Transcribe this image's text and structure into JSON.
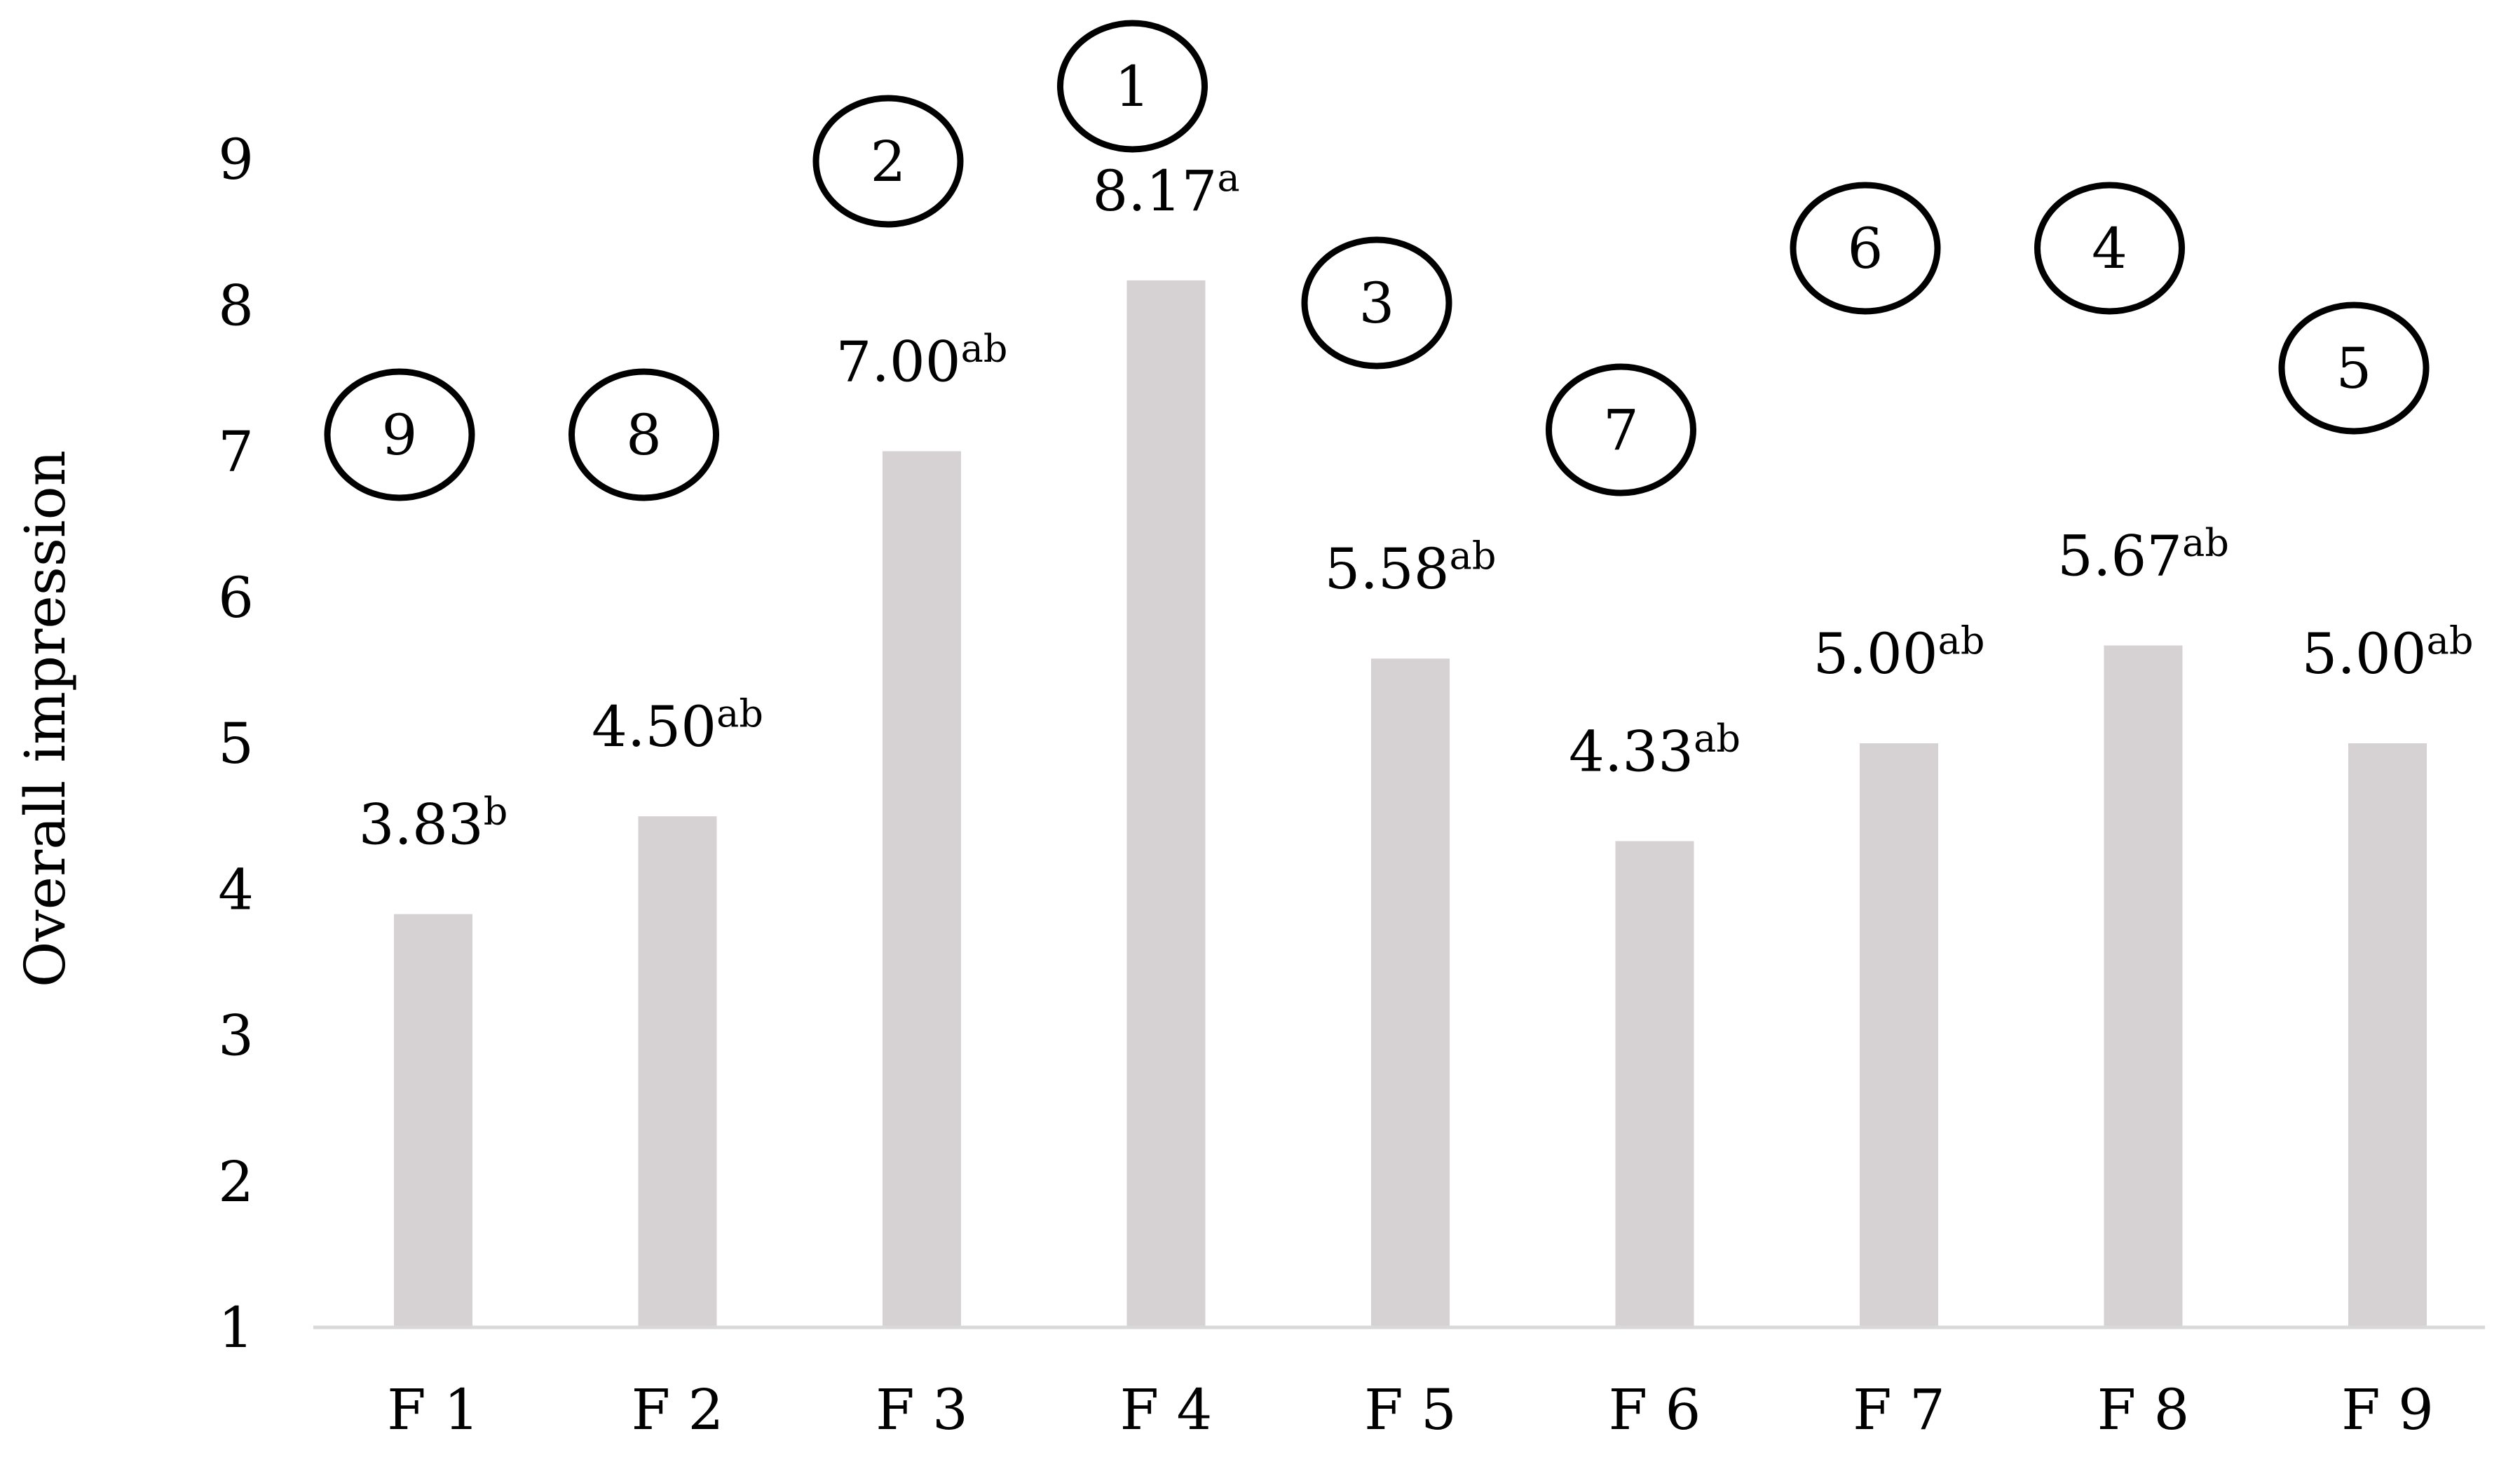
{
  "chart_data": {
    "type": "bar",
    "title": "",
    "xlabel": "",
    "ylabel": "Overall impression",
    "ylim": [
      1,
      9
    ],
    "yticks": [
      "1",
      "2",
      "3",
      "4",
      "5",
      "6",
      "7",
      "8",
      "9"
    ],
    "grid": false,
    "legend": "none",
    "bar_color": "#d6d2d4",
    "categories": [
      "F 1",
      "F 2",
      "F 3",
      "F 4",
      "F 5",
      "F 6",
      "F 7",
      "F 8",
      "F 9"
    ],
    "values": [
      3.83,
      4.5,
      7.0,
      8.17,
      5.58,
      4.33,
      5.0,
      5.67,
      5.0
    ],
    "value_labels": [
      "3.83",
      "4.50",
      "7.00",
      "8.17",
      "5.58",
      "4.33",
      "5.00",
      "5.67",
      "5.00"
    ],
    "significance_letters": [
      "b",
      "ab",
      "ab",
      "a",
      "ab",
      "ab",
      "ab",
      "ab",
      "ab"
    ],
    "ranks": [
      "9",
      "8",
      "2",
      "1",
      "3",
      "7",
      "6",
      "4",
      "5"
    ]
  }
}
